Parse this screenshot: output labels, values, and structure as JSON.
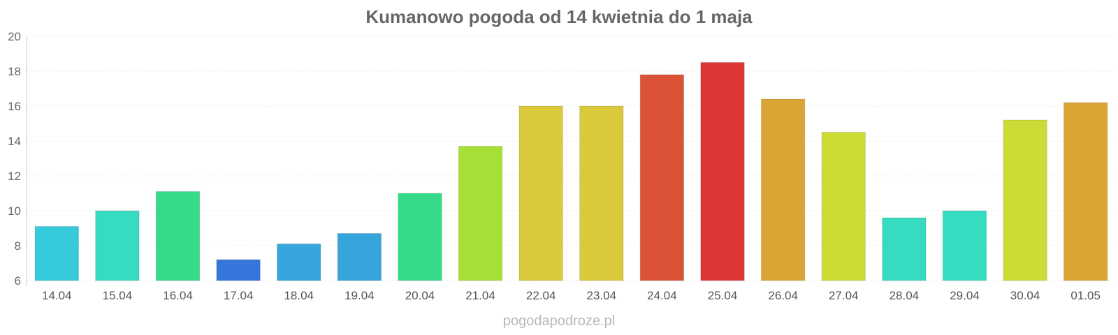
{
  "chart_data": {
    "type": "bar",
    "title": "Kumanowo pogoda od 14 kwietnia do 1 maja",
    "xlabel": "",
    "ylabel": "",
    "ylim": [
      6,
      20
    ],
    "yticks": [
      6,
      8,
      10,
      12,
      14,
      16,
      18,
      20
    ],
    "grid": true,
    "categories": [
      "14.04",
      "15.04",
      "16.04",
      "17.04",
      "18.04",
      "19.04",
      "20.04",
      "21.04",
      "22.04",
      "23.04",
      "24.04",
      "25.04",
      "26.04",
      "27.04",
      "28.04",
      "29.04",
      "30.04",
      "01.05"
    ],
    "values": [
      9.1,
      10.0,
      11.1,
      7.2,
      8.1,
      8.7,
      11.0,
      13.7,
      16.0,
      16.0,
      17.8,
      18.5,
      16.4,
      14.5,
      9.6,
      10.0,
      15.2,
      16.2
    ],
    "colors": [
      "#36cbda",
      "#36dbc0",
      "#36db8a",
      "#3676db",
      "#36a5db",
      "#36a5db",
      "#36db8a",
      "#a8df36",
      "#dac93a",
      "#dac93a",
      "#dc5236",
      "#dc3636",
      "#dba536",
      "#cedb36",
      "#36dbc0",
      "#36dbc0",
      "#cedb36",
      "#dba536"
    ]
  },
  "watermark": "pogodapodroze.pl"
}
